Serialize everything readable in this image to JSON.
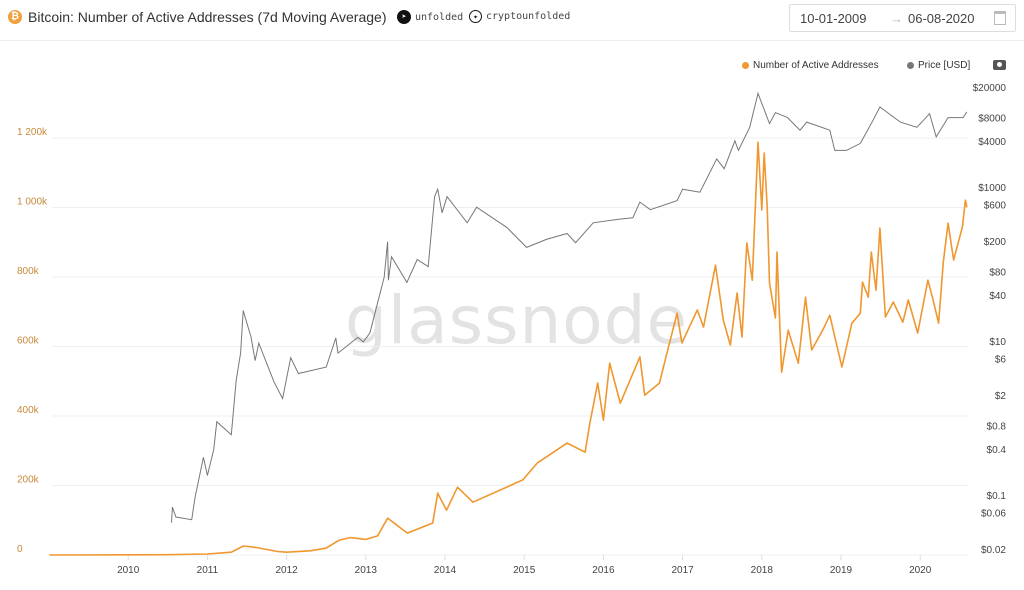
{
  "header": {
    "title": "Bitcoin: Number of Active Addresses (7d Moving Average)",
    "telegram_label": "unfolded",
    "twitter_label": "cryptounfolded",
    "date_from": "10-01-2009",
    "date_arrow": "→",
    "date_to": "06-08-2020",
    "icons": [
      "bitcoin-icon",
      "telegram-icon",
      "twitter-icon",
      "calendar-icon",
      "camera-icon"
    ]
  },
  "watermark": "glassnode",
  "colors": {
    "addresses": "#f0972f",
    "price": "#777777",
    "axis_left": "#c8893a"
  },
  "legend": {
    "addresses": "Number of Active Addresses",
    "price": "Price [USD]"
  },
  "chart_data": {
    "type": "line",
    "x_ticks": [
      "2010",
      "2011",
      "2012",
      "2013",
      "2014",
      "2015",
      "2016",
      "2017",
      "2018",
      "2019",
      "2020"
    ],
    "y_left": {
      "scale": "linear",
      "range": [
        0,
        1200
      ],
      "ticks": [
        "0",
        "200k",
        "400k",
        "600k",
        "800k",
        "1 000k",
        "1 200k"
      ],
      "tick_values": [
        0,
        200,
        400,
        600,
        800,
        1000,
        1200
      ]
    },
    "y_right": {
      "scale": "log",
      "ticks": [
        "$20000",
        "$8000",
        "$4000",
        "$1000",
        "$600",
        "$200",
        "$80",
        "$40",
        "$10",
        "$6",
        "$2",
        "$0.8",
        "$0.4",
        "$0.1",
        "$0.06",
        "$0.02"
      ],
      "tick_values": [
        20000,
        8000,
        4000,
        1000,
        600,
        200,
        80,
        40,
        10,
        6,
        2,
        0.8,
        0.4,
        0.1,
        0.06,
        0.02
      ]
    },
    "grid": true,
    "legend_position": "top-right",
    "series": [
      {
        "name": "Number of Active Addresses",
        "axis": "left",
        "unit": "k",
        "points": [
          [
            "2009-01-03",
            0
          ],
          [
            "2010-01-01",
            0.5
          ],
          [
            "2010-07-01",
            1
          ],
          [
            "2011-01-01",
            3
          ],
          [
            "2011-04-20",
            8
          ],
          [
            "2011-06-15",
            26
          ],
          [
            "2011-08-10",
            22
          ],
          [
            "2011-11-20",
            10
          ],
          [
            "2012-01-01",
            8
          ],
          [
            "2012-04-20",
            12
          ],
          [
            "2012-07-01",
            20
          ],
          [
            "2012-08-10",
            35
          ],
          [
            "2012-09-01",
            43
          ],
          [
            "2012-10-20",
            50
          ],
          [
            "2013-01-01",
            45
          ],
          [
            "2013-02-25",
            55
          ],
          [
            "2013-04-10",
            106
          ],
          [
            "2013-07-10",
            63
          ],
          [
            "2013-11-05",
            92
          ],
          [
            "2013-11-28",
            178
          ],
          [
            "2014-01-08",
            129
          ],
          [
            "2014-02-28",
            195
          ],
          [
            "2014-05-08",
            152
          ],
          [
            "2014-12-25",
            216
          ],
          [
            "2015-03-01",
            265
          ],
          [
            "2015-07-16",
            322
          ],
          [
            "2015-10-08",
            296
          ],
          [
            "2015-10-30",
            380
          ],
          [
            "2015-12-05",
            495
          ],
          [
            "2016-01-01",
            388
          ],
          [
            "2016-01-30",
            552
          ],
          [
            "2016-03-18",
            437
          ],
          [
            "2016-06-17",
            570
          ],
          [
            "2016-07-09",
            460
          ],
          [
            "2016-09-16",
            495
          ],
          [
            "2016-10-12",
            561
          ],
          [
            "2016-12-06",
            696
          ],
          [
            "2016-12-28",
            610
          ],
          [
            "2017-03-08",
            705
          ],
          [
            "2017-04-06",
            656
          ],
          [
            "2017-05-31",
            834
          ],
          [
            "2017-07-06",
            676
          ],
          [
            "2017-08-08",
            604
          ],
          [
            "2017-09-09",
            754
          ],
          [
            "2017-10-01",
            627
          ],
          [
            "2017-10-23",
            898
          ],
          [
            "2017-11-18",
            791
          ],
          [
            "2017-12-14",
            1188
          ],
          [
            "2018-01-01",
            993
          ],
          [
            "2018-01-12",
            1157
          ],
          [
            "2018-01-26",
            1001
          ],
          [
            "2018-02-06",
            783
          ],
          [
            "2018-03-03",
            682
          ],
          [
            "2018-03-10",
            872
          ],
          [
            "2018-04-01",
            526
          ],
          [
            "2018-05-01",
            647
          ],
          [
            "2018-06-17",
            552
          ],
          [
            "2018-07-20",
            742
          ],
          [
            "2018-08-18",
            590
          ],
          [
            "2018-10-08",
            647
          ],
          [
            "2018-11-10",
            690
          ],
          [
            "2019-01-05",
            541
          ],
          [
            "2019-02-21",
            667
          ],
          [
            "2019-03-29",
            696
          ],
          [
            "2019-04-09",
            785
          ],
          [
            "2019-05-05",
            742
          ],
          [
            "2019-05-19",
            872
          ],
          [
            "2019-06-10",
            762
          ],
          [
            "2019-06-28",
            941
          ],
          [
            "2019-07-23",
            685
          ],
          [
            "2019-08-29",
            728
          ],
          [
            "2019-10-12",
            670
          ],
          [
            "2019-11-07",
            734
          ],
          [
            "2019-12-20",
            639
          ],
          [
            "2020-02-06",
            791
          ],
          [
            "2020-02-28",
            739
          ],
          [
            "2020-03-25",
            667
          ],
          [
            "2020-04-16",
            843
          ],
          [
            "2020-05-08",
            955
          ],
          [
            "2020-06-03",
            849
          ],
          [
            "2020-07-13",
            944
          ],
          [
            "2020-07-27",
            1021
          ],
          [
            "2020-08-03",
            1001
          ]
        ]
      },
      {
        "name": "Price [USD]",
        "axis": "right",
        "points": [
          [
            "2010-07-18",
            0.044
          ],
          [
            "2010-07-22",
            0.07
          ],
          [
            "2010-08-08",
            0.052
          ],
          [
            "2010-10-20",
            0.048
          ],
          [
            "2010-11-05",
            0.094
          ],
          [
            "2010-12-13",
            0.31
          ],
          [
            "2011-01-01",
            0.18
          ],
          [
            "2011-01-30",
            0.39
          ],
          [
            "2011-02-14",
            0.9
          ],
          [
            "2011-04-20",
            0.61
          ],
          [
            "2011-05-12",
            3.1
          ],
          [
            "2011-06-02",
            7
          ],
          [
            "2011-06-14",
            25
          ],
          [
            "2011-07-20",
            11.2
          ],
          [
            "2011-08-08",
            5.6
          ],
          [
            "2011-08-25",
            9.4
          ],
          [
            "2011-11-05",
            2.9
          ],
          [
            "2011-12-13",
            1.8
          ],
          [
            "2012-01-20",
            6.1
          ],
          [
            "2012-02-25",
            3.8
          ],
          [
            "2012-07-01",
            4.6
          ],
          [
            "2012-08-15",
            11
          ],
          [
            "2012-08-25",
            7
          ],
          [
            "2012-11-25",
            11.2
          ],
          [
            "2012-12-20",
            9.8
          ],
          [
            "2013-01-20",
            12.8
          ],
          [
            "2013-03-25",
            68
          ],
          [
            "2013-04-10",
            195
          ],
          [
            "2013-04-14",
            62
          ],
          [
            "2013-04-28",
            125
          ],
          [
            "2013-07-08",
            58
          ],
          [
            "2013-08-25",
            115
          ],
          [
            "2013-10-15",
            93
          ],
          [
            "2013-11-14",
            755
          ],
          [
            "2013-11-28",
            940
          ],
          [
            "2013-12-18",
            465
          ],
          [
            "2014-01-10",
            755
          ],
          [
            "2014-04-12",
            345
          ],
          [
            "2014-05-25",
            550
          ],
          [
            "2014-10-12",
            300
          ],
          [
            "2015-01-12",
            165
          ],
          [
            "2015-04-12",
            210
          ],
          [
            "2015-07-16",
            250
          ],
          [
            "2015-08-25",
            190
          ],
          [
            "2015-11-15",
            345
          ],
          [
            "2016-03-01",
            380
          ],
          [
            "2016-05-15",
            400
          ],
          [
            "2016-06-17",
            640
          ],
          [
            "2016-08-04",
            510
          ],
          [
            "2016-12-06",
            670
          ],
          [
            "2017-01-01",
            940
          ],
          [
            "2017-03-20",
            860
          ],
          [
            "2017-06-06",
            2330
          ],
          [
            "2017-07-10",
            1740
          ],
          [
            "2017-08-29",
            4000
          ],
          [
            "2017-09-15",
            3000
          ],
          [
            "2017-11-06",
            6000
          ],
          [
            "2017-12-14",
            16500
          ],
          [
            "2018-02-06",
            6700
          ],
          [
            "2018-03-03",
            9300
          ],
          [
            "2018-04-28",
            8000
          ],
          [
            "2018-06-25",
            5500
          ],
          [
            "2018-07-26",
            7000
          ],
          [
            "2018-11-10",
            5500
          ],
          [
            "2018-12-03",
            3000
          ],
          [
            "2019-01-26",
            3000
          ],
          [
            "2019-03-29",
            3700
          ],
          [
            "2019-05-26",
            7300
          ],
          [
            "2019-06-28",
            11000
          ],
          [
            "2019-10-01",
            7000
          ],
          [
            "2019-12-16",
            6000
          ],
          [
            "2020-02-14",
            9000
          ],
          [
            "2020-03-14",
            4500
          ],
          [
            "2020-05-08",
            8000
          ],
          [
            "2020-07-16",
            8000
          ],
          [
            "2020-08-03",
            9500
          ]
        ]
      }
    ]
  }
}
